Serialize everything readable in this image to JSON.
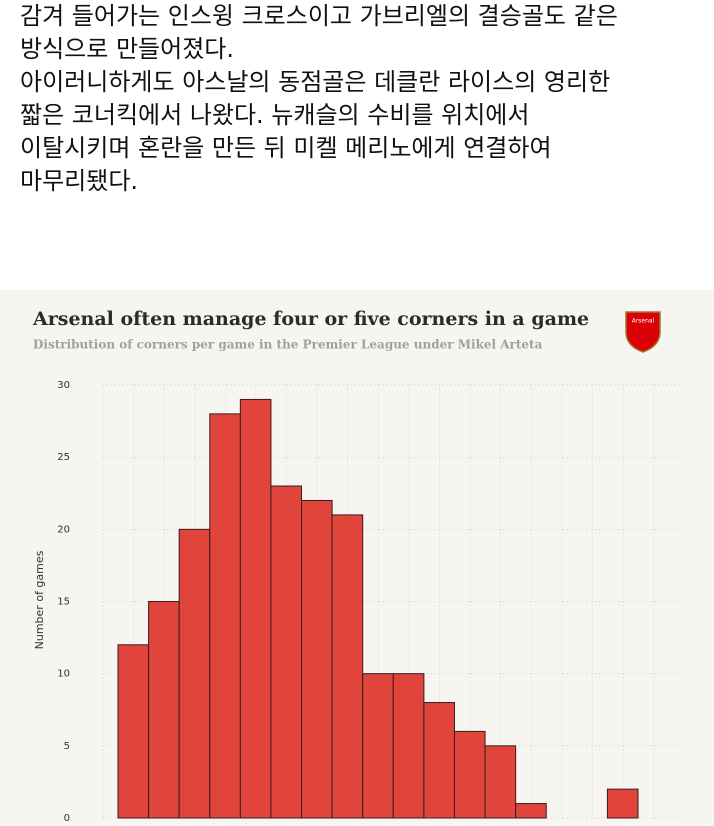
{
  "article": {
    "lines": [
      "감겨 들어가는 인스윙 크로스이고 가브리엘의 결승골도 같은",
      "방식으로 만들어졌다.",
      "아이러니하게도 아스날의 동점골은 데클란 라이스의 영리한",
      "짧은 코너킥에서 나왔다. 뉴캐슬의 수비를 위치에서",
      "이탈시키며 혼란을 만든 뒤 미켈 메리노에게 연결하여",
      "마무리됐다."
    ]
  },
  "chart_data": {
    "type": "bar",
    "title": "Arsenal often manage four or five corners in a game",
    "subtitle": "Distribution of corners per game in the Premier League under Mikel Arteta",
    "logo_text": "Arsenal",
    "y_label": "Number of games",
    "categories": [
      null,
      null,
      null,
      null,
      null,
      null,
      null,
      null,
      null,
      null,
      null,
      null,
      null,
      null,
      null,
      null,
      null
    ],
    "values": [
      12,
      15,
      20,
      28,
      29,
      23,
      22,
      21,
      10,
      10,
      8,
      6,
      5,
      1,
      0,
      0,
      2
    ],
    "color": "#e0443a",
    "ylim": [
      0,
      30
    ],
    "yticks": [
      0,
      5,
      10,
      15,
      20,
      25,
      30
    ],
    "grid": true
  }
}
